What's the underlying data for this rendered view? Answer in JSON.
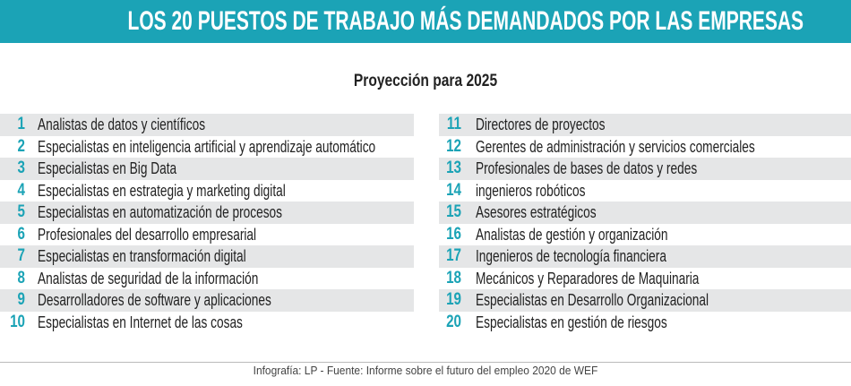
{
  "header": {
    "title": "LOS 20 PUESTOS DE TRABAJO MÁS DEMANDADOS POR LAS EMPRESAS"
  },
  "subtitle": "Proyección para 2025",
  "columns": [
    {
      "items": [
        {
          "rank": 1,
          "label": "Analistas de datos y científicos"
        },
        {
          "rank": 2,
          "label": "Especialistas en inteligencia artificial y aprendizaje automático"
        },
        {
          "rank": 3,
          "label": "Especialistas en Big Data"
        },
        {
          "rank": 4,
          "label": "Especialistas en estrategia y marketing digital"
        },
        {
          "rank": 5,
          "label": "Especialistas en automatización de procesos"
        },
        {
          "rank": 6,
          "label": "Profesionales del desarrollo empresarial"
        },
        {
          "rank": 7,
          "label": "Especialistas en transformación digital"
        },
        {
          "rank": 8,
          "label": "Analistas de seguridad de la información"
        },
        {
          "rank": 9,
          "label": "Desarrolladores de software y aplicaciones"
        },
        {
          "rank": 10,
          "label": "Especialistas en Internet de las cosas"
        }
      ]
    },
    {
      "items": [
        {
          "rank": 11,
          "label": "Directores de proyectos"
        },
        {
          "rank": 12,
          "label": "Gerentes de administración y servicios comerciales"
        },
        {
          "rank": 13,
          "label": "Profesionales de bases de datos y redes"
        },
        {
          "rank": 14,
          "label": "ingenieros robóticos"
        },
        {
          "rank": 15,
          "label": "Asesores estratégicos"
        },
        {
          "rank": 16,
          "label": "Analistas de gestión y organización"
        },
        {
          "rank": 17,
          "label": "Ingenieros de tecnología financiera"
        },
        {
          "rank": 18,
          "label": "Mecánicos y Reparadores de Maquinaria"
        },
        {
          "rank": 19,
          "label": "Especialistas en Desarrollo Organizacional"
        },
        {
          "rank": 20,
          "label": "Especialistas en gestión de riesgos"
        }
      ]
    }
  ],
  "footer": "Infografía: LP - Fuente: Informe sobre el futuro del empleo 2020 de WEF"
}
